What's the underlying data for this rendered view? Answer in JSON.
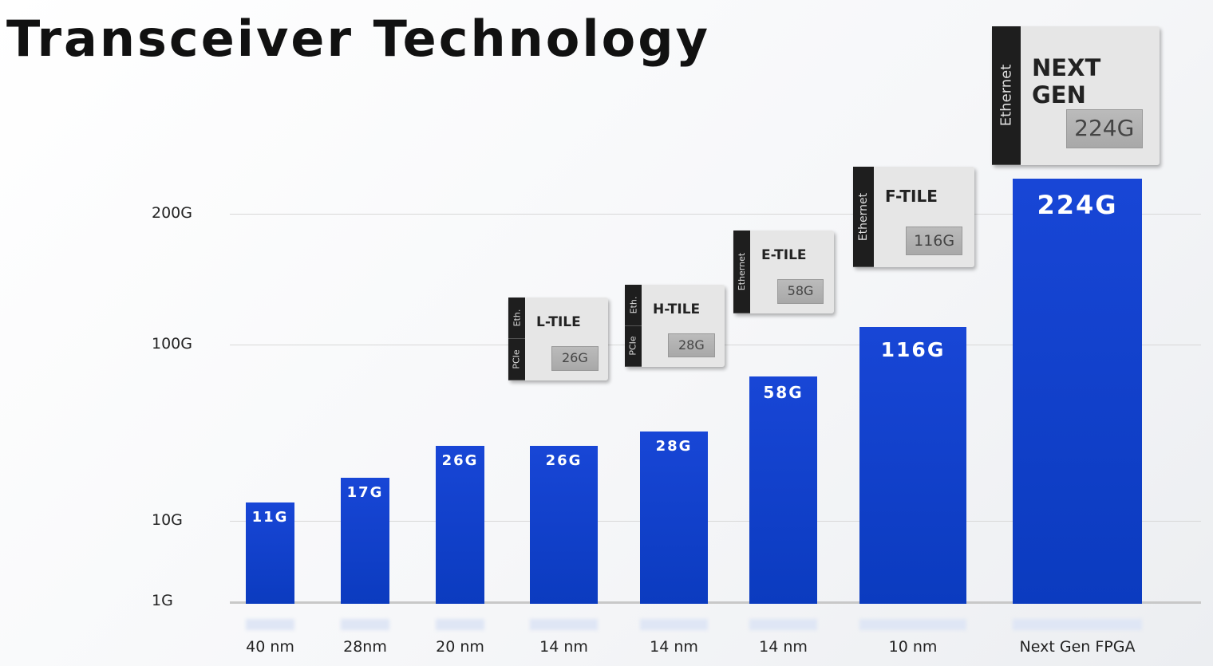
{
  "title": "Transceiver Technology",
  "chart_data": {
    "type": "bar",
    "title": "Transceiver Technology",
    "categories": [
      "40 nm",
      "28nm",
      "20 nm",
      "14 nm",
      "14 nm",
      "14 nm",
      "10 nm",
      "Next Gen FPGA"
    ],
    "values": [
      11,
      17,
      26,
      26,
      28,
      58,
      116,
      224
    ],
    "labels": [
      "11G",
      "17G",
      "26G",
      "26G",
      "28G",
      "58G",
      "116G",
      "224G"
    ],
    "yticks": [
      "1G",
      "10G",
      "100G",
      "200G"
    ],
    "ytick_values": [
      1,
      10,
      100,
      200
    ],
    "yscale": "non-linear",
    "grid": true,
    "color": "#1442cc"
  },
  "tiles": [
    {
      "name": "L-TILE",
      "value": "26G",
      "side": [
        "Eth.",
        "PCIe"
      ]
    },
    {
      "name": "H-TILE",
      "value": "28G",
      "side": [
        "Eth.",
        "PCIe"
      ]
    },
    {
      "name": "E-TILE",
      "value": "58G",
      "side": [
        "Ethernet"
      ]
    },
    {
      "name": "F-TILE",
      "value": "116G",
      "side": [
        "Ethernet"
      ]
    },
    {
      "name": "NEXT GEN",
      "value": "224G",
      "side": [
        "Ethernet"
      ]
    }
  ]
}
